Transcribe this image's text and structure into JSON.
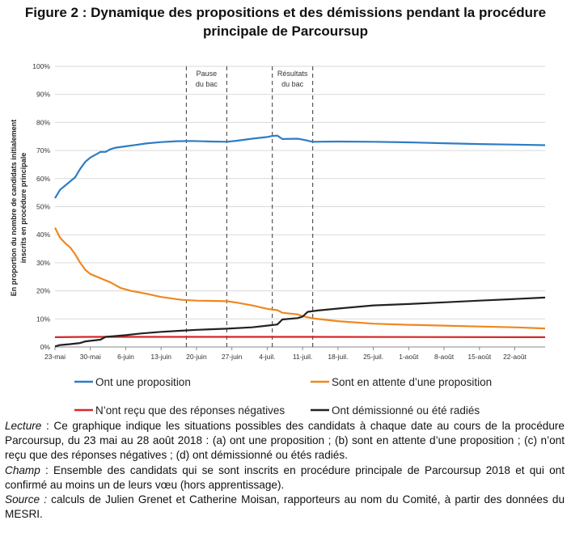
{
  "title": {
    "line1": "Figure 2 : Dynamique des propositions et des démissions pendant la procédure",
    "line2": "principale de Parcoursup"
  },
  "notes": {
    "lecture_label": "Lecture",
    "lecture_text": " : Ce graphique indique les situations possibles des candidats à chaque date au cours de la procédure Parcoursup, du 23 mai au 28 août 2018 : (a) ont une proposition ; (b) sont en attente d’une proposition ; (c) n’ont reçu que des réponses négatives ; (d) ont démissionné ou étés radiés.",
    "champ_label": "Champ",
    "champ_text": " : Ensemble des candidats qui se sont inscrits en procédure principale de Parcoursup 2018 et qui ont confirmé au moins un de leurs vœu (hors apprentissage).",
    "source_label": "Source :",
    "source_text": " calculs de Julien Grenet et Catherine Moisan, rapporteurs au nom du Comité, à partir des données du MESRI."
  },
  "chart_data": {
    "type": "line",
    "ylabel_line1": "En proportion du nombre de candidats initialement",
    "ylabel_line2": "inscrits en procédure principale",
    "xlabel": "",
    "ylim": [
      0,
      100
    ],
    "y_ticks": [
      "0%",
      "10%",
      "20%",
      "30%",
      "40%",
      "50%",
      "60%",
      "70%",
      "80%",
      "90%",
      "100%"
    ],
    "x_range": [
      "2018-05-23",
      "2018-08-28"
    ],
    "x_ticks": [
      {
        "date": "2018-05-23",
        "label": "23-mai"
      },
      {
        "date": "2018-05-30",
        "label": "30-mai"
      },
      {
        "date": "2018-06-06",
        "label": "6-juin"
      },
      {
        "date": "2018-06-13",
        "label": "13-juin"
      },
      {
        "date": "2018-06-20",
        "label": "20-juin"
      },
      {
        "date": "2018-06-27",
        "label": "27-juin"
      },
      {
        "date": "2018-07-04",
        "label": "4-juil."
      },
      {
        "date": "2018-07-11",
        "label": "11-juil."
      },
      {
        "date": "2018-07-18",
        "label": "18-juil."
      },
      {
        "date": "2018-07-25",
        "label": "25-juil."
      },
      {
        "date": "2018-08-01",
        "label": "1-août"
      },
      {
        "date": "2018-08-08",
        "label": "8-août"
      },
      {
        "date": "2018-08-15",
        "label": "15-août"
      },
      {
        "date": "2018-08-22",
        "label": "22-août"
      }
    ],
    "grid": true,
    "legend_position": "bottom",
    "annotations": [
      {
        "label_line1": "Pause",
        "label_line2": "du bac",
        "start": "2018-06-18",
        "end": "2018-06-26"
      },
      {
        "label_line1": "Résultats",
        "label_line2": "du bac",
        "start": "2018-07-05",
        "end": "2018-07-13"
      }
    ],
    "series": [
      {
        "name": "Ont une proposition",
        "color": "#2e7cc4",
        "points": [
          [
            "2018-05-23",
            53
          ],
          [
            "2018-05-24",
            56
          ],
          [
            "2018-05-25",
            57.5
          ],
          [
            "2018-05-26",
            59
          ],
          [
            "2018-05-27",
            60.5
          ],
          [
            "2018-05-28",
            63.5
          ],
          [
            "2018-05-29",
            66
          ],
          [
            "2018-05-30",
            67.5
          ],
          [
            "2018-05-31",
            68.5
          ],
          [
            "2018-06-01",
            69.5
          ],
          [
            "2018-06-02",
            69.5
          ],
          [
            "2018-06-03",
            70.5
          ],
          [
            "2018-06-04",
            71
          ],
          [
            "2018-06-06",
            71.5
          ],
          [
            "2018-06-08",
            72
          ],
          [
            "2018-06-10",
            72.5
          ],
          [
            "2018-06-13",
            73
          ],
          [
            "2018-06-16",
            73.3
          ],
          [
            "2018-06-19",
            73.4
          ],
          [
            "2018-06-23",
            73.2
          ],
          [
            "2018-06-26",
            73.1
          ],
          [
            "2018-06-28",
            73.5
          ],
          [
            "2018-07-01",
            74.2
          ],
          [
            "2018-07-04",
            74.8
          ],
          [
            "2018-07-05",
            75.2
          ],
          [
            "2018-07-06",
            75.3
          ],
          [
            "2018-07-07",
            74.1
          ],
          [
            "2018-07-10",
            74.2
          ],
          [
            "2018-07-11",
            73.9
          ],
          [
            "2018-07-13",
            73.1
          ],
          [
            "2018-07-18",
            73.2
          ],
          [
            "2018-07-25",
            73.1
          ],
          [
            "2018-08-01",
            72.9
          ],
          [
            "2018-08-08",
            72.6
          ],
          [
            "2018-08-15",
            72.3
          ],
          [
            "2018-08-22",
            72.1
          ],
          [
            "2018-08-28",
            71.9
          ]
        ]
      },
      {
        "name": "Sont en attente d’une proposition",
        "color": "#f0871f",
        "points": [
          [
            "2018-05-23",
            42.5
          ],
          [
            "2018-05-24",
            39
          ],
          [
            "2018-05-25",
            37
          ],
          [
            "2018-05-26",
            35.5
          ],
          [
            "2018-05-27",
            33
          ],
          [
            "2018-05-28",
            30
          ],
          [
            "2018-05-29",
            27.5
          ],
          [
            "2018-05-30",
            26
          ],
          [
            "2018-06-01",
            24.5
          ],
          [
            "2018-06-03",
            23
          ],
          [
            "2018-06-05",
            21
          ],
          [
            "2018-06-07",
            20
          ],
          [
            "2018-06-10",
            19
          ],
          [
            "2018-06-13",
            17.8
          ],
          [
            "2018-06-17",
            16.8
          ],
          [
            "2018-06-20",
            16.5
          ],
          [
            "2018-06-26",
            16.3
          ],
          [
            "2018-06-28",
            15.8
          ],
          [
            "2018-07-01",
            14.8
          ],
          [
            "2018-07-04",
            13.6
          ],
          [
            "2018-07-06",
            13.1
          ],
          [
            "2018-07-07",
            12.2
          ],
          [
            "2018-07-10",
            11.6
          ],
          [
            "2018-07-11",
            11.0
          ],
          [
            "2018-07-13",
            10.2
          ],
          [
            "2018-07-18",
            9.2
          ],
          [
            "2018-07-25",
            8.3
          ],
          [
            "2018-08-01",
            7.9
          ],
          [
            "2018-08-08",
            7.6
          ],
          [
            "2018-08-15",
            7.3
          ],
          [
            "2018-08-22",
            7.0
          ],
          [
            "2018-08-28",
            6.6
          ]
        ]
      },
      {
        "name": "N’ont reçu que des réponses négatives",
        "color": "#d62728",
        "points": [
          [
            "2018-05-23",
            3.5
          ],
          [
            "2018-05-30",
            3.6
          ],
          [
            "2018-06-13",
            3.6
          ],
          [
            "2018-07-11",
            3.6
          ],
          [
            "2018-08-28",
            3.5
          ]
        ]
      },
      {
        "name": "Ont démissionné ou été radiés",
        "color": "#222222",
        "points": [
          [
            "2018-05-23",
            0.2
          ],
          [
            "2018-05-24",
            0.7
          ],
          [
            "2018-05-26",
            1.0
          ],
          [
            "2018-05-28",
            1.4
          ],
          [
            "2018-05-29",
            2.0
          ],
          [
            "2018-05-30",
            2.2
          ],
          [
            "2018-06-01",
            2.6
          ],
          [
            "2018-06-02",
            3.6
          ],
          [
            "2018-06-04",
            3.9
          ],
          [
            "2018-06-06",
            4.2
          ],
          [
            "2018-06-09",
            4.8
          ],
          [
            "2018-06-13",
            5.4
          ],
          [
            "2018-06-17",
            5.8
          ],
          [
            "2018-06-20",
            6.1
          ],
          [
            "2018-06-26",
            6.5
          ],
          [
            "2018-07-01",
            7.0
          ],
          [
            "2018-07-04",
            7.6
          ],
          [
            "2018-07-06",
            8.0
          ],
          [
            "2018-07-07",
            9.8
          ],
          [
            "2018-07-10",
            10.3
          ],
          [
            "2018-07-11",
            10.8
          ],
          [
            "2018-07-12",
            12.5
          ],
          [
            "2018-07-14",
            13.0
          ],
          [
            "2018-07-18",
            13.7
          ],
          [
            "2018-07-25",
            14.8
          ],
          [
            "2018-08-01",
            15.3
          ],
          [
            "2018-08-08",
            15.9
          ],
          [
            "2018-08-15",
            16.5
          ],
          [
            "2018-08-22",
            17.1
          ],
          [
            "2018-08-28",
            17.6
          ]
        ]
      }
    ]
  }
}
